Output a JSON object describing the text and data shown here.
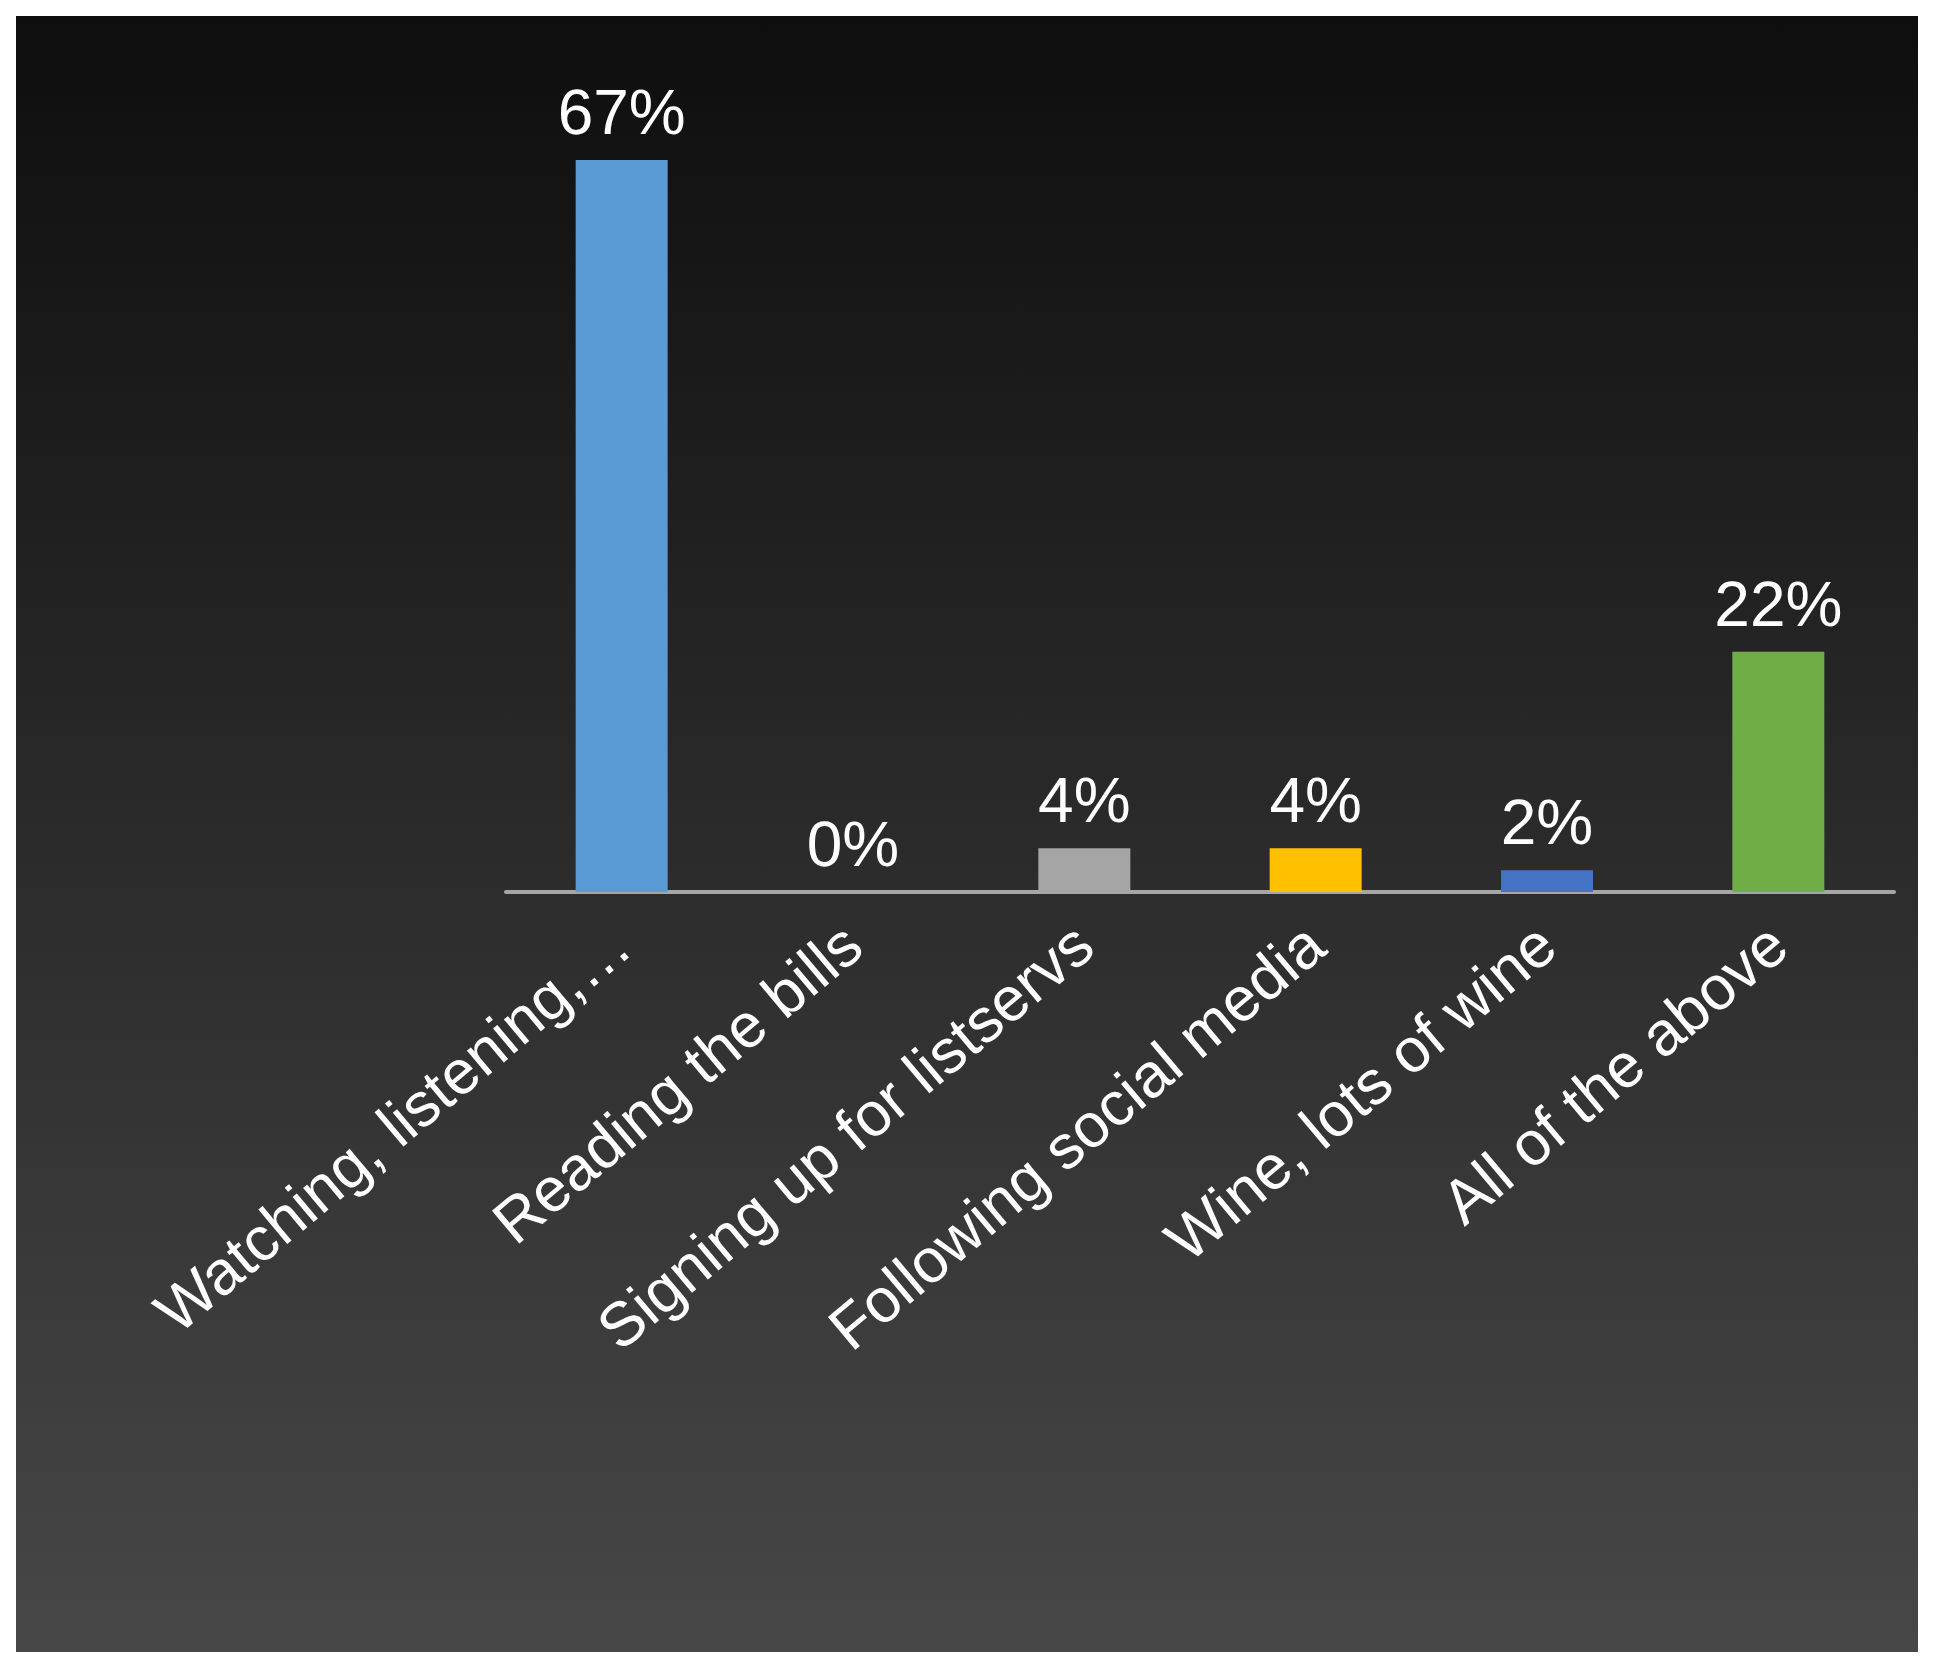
{
  "chart_data": {
    "type": "bar",
    "categories": [
      "Watching, listening,…",
      "Reading the bills",
      "Signing up for listservs",
      "Following social media",
      "Wine, lots of wine",
      "All of the above"
    ],
    "values": [
      67,
      0,
      4,
      4,
      2,
      22
    ],
    "colors": [
      "#5b9bd5",
      "#c55a11",
      "#a5a5a5",
      "#ffc000",
      "#4472c4",
      "#70ad47"
    ],
    "value_labels": [
      "67%",
      "0%",
      "4%",
      "4%",
      "2%",
      "22%"
    ]
  }
}
